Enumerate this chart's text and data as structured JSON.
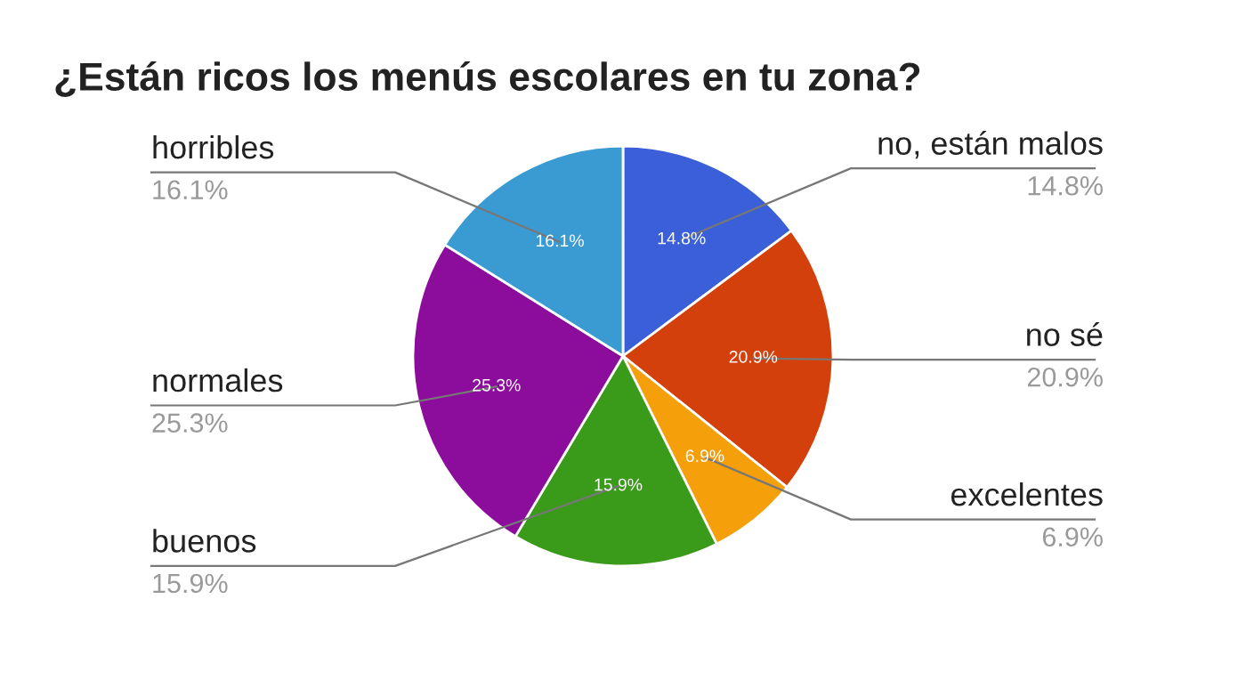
{
  "chart_data": {
    "type": "pie",
    "title": "¿Están ricos los menús escolares en tu zona?",
    "categories": [
      "no, están malos",
      "no sé",
      "excelentes",
      "buenos",
      "normales",
      "horribles"
    ],
    "values": [
      14.8,
      20.9,
      6.9,
      15.9,
      25.3,
      16.1
    ],
    "value_labels": [
      "14.8%",
      "20.9%",
      "6.9%",
      "15.9%",
      "25.3%",
      "16.1%"
    ],
    "colors": [
      "#3b5fd8",
      "#d4400c",
      "#f5a00a",
      "#3a9a1a",
      "#8c0c9c",
      "#3a9ad2"
    ]
  }
}
